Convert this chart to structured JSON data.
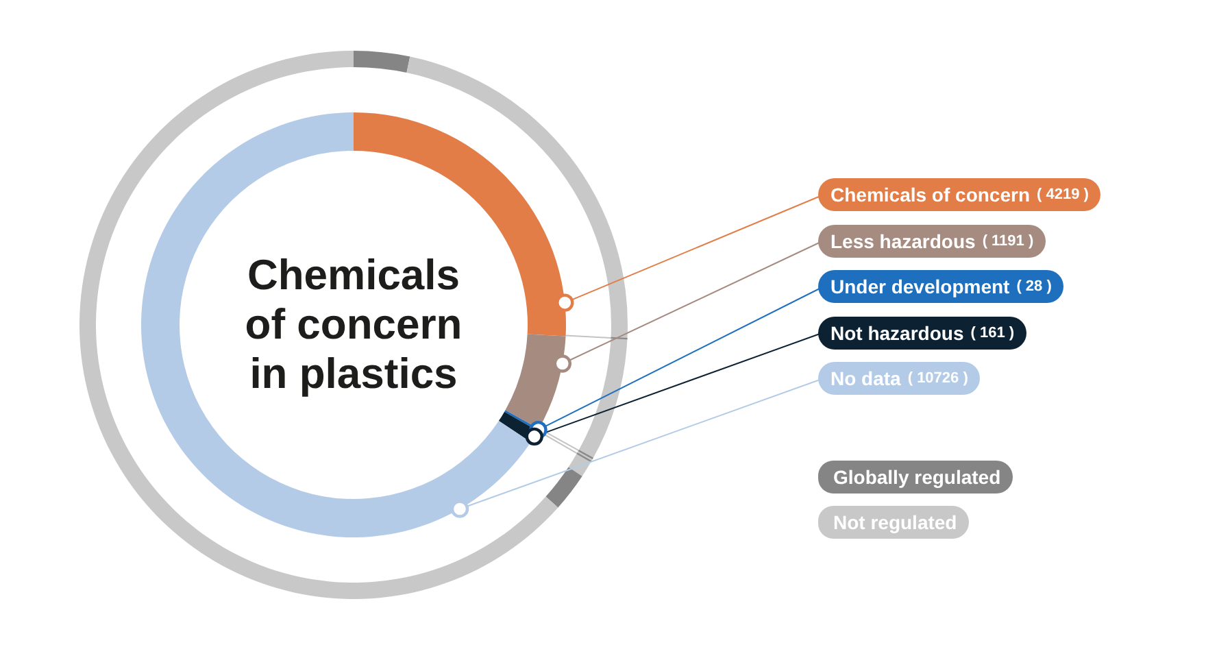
{
  "chart_data": [
    {
      "type": "donut",
      "title": "Chemicals of concern in plastics",
      "categories": [
        "Chemicals of concern",
        "Less hazardous",
        "Under development",
        "Not hazardous",
        "No data"
      ],
      "values": [
        4219,
        1191,
        28,
        161,
        10726
      ],
      "colors": [
        "#e27d48",
        "#a68b81",
        "#1f6fbf",
        "#0c2233",
        "#b4cbe7"
      ],
      "value_labels": [
        "( 4219 )",
        "( 1191 )",
        "( 28 )",
        "( 161 )",
        "( 10726 )"
      ]
    },
    {
      "type": "donut",
      "categories": [
        "Globally regulated",
        "Not regulated",
        null,
        null,
        null,
        null,
        null
      ],
      "values": [
        3.3,
        22.5,
        7.3,
        0.2,
        1.0,
        2.3,
        63.4
      ],
      "colors": [
        "#858585",
        "#c8c8c8",
        "#c8c8c8",
        "#c8c8c8",
        "#c8c8c8",
        "#858585",
        "#c8c8c8"
      ],
      "legend": "right"
    }
  ]
}
